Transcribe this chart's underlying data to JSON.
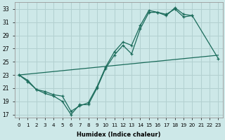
{
  "xlabel": "Humidex (Indice chaleur)",
  "background_color": "#cde8e8",
  "grid_color": "#b2d0d0",
  "line_color": "#1a6b5a",
  "xlim": [
    -0.5,
    23.5
  ],
  "ylim": [
    16.5,
    34.0
  ],
  "yticks": [
    17,
    19,
    21,
    23,
    25,
    27,
    29,
    31,
    33
  ],
  "xticks": [
    0,
    1,
    2,
    3,
    4,
    5,
    6,
    7,
    8,
    9,
    10,
    11,
    12,
    13,
    14,
    15,
    16,
    17,
    18,
    19,
    20,
    21,
    22,
    23
  ],
  "line1_x": [
    0,
    1,
    2,
    3,
    4,
    5,
    6,
    7,
    8,
    9,
    10,
    11,
    12,
    13,
    14,
    15,
    16,
    17,
    18,
    19,
    20,
    23
  ],
  "line1_y": [
    23.0,
    22.2,
    20.8,
    20.2,
    19.8,
    19.0,
    17.0,
    18.5,
    18.5,
    21.0,
    24.0,
    26.0,
    27.5,
    26.2,
    30.0,
    32.5,
    32.5,
    32.2,
    33.0,
    31.8,
    32.0,
    25.5
  ],
  "line2_x": [
    0,
    1,
    2,
    3,
    4,
    5,
    6,
    7,
    8,
    9,
    10,
    11,
    12,
    13,
    14,
    15,
    16,
    17,
    18,
    19,
    20
  ],
  "line2_y": [
    23.0,
    22.0,
    20.8,
    20.5,
    20.0,
    19.8,
    17.5,
    18.3,
    18.8,
    21.2,
    24.2,
    26.5,
    28.0,
    27.5,
    30.5,
    32.8,
    32.5,
    32.0,
    33.2,
    32.2,
    32.0
  ],
  "line3_x": [
    0,
    23
  ],
  "line3_y": [
    23.0,
    26.0
  ]
}
